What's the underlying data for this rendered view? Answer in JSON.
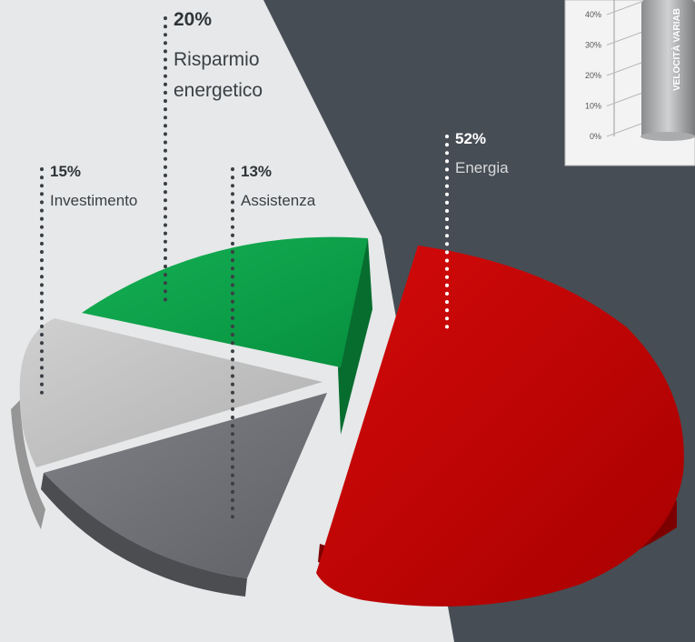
{
  "colors": {
    "background_left": "#e6e8e9",
    "background_right": "#464d54",
    "energia": "#c40000",
    "risparmio": "#0aa048",
    "investimento": "#c2c2c2",
    "assistenza": "#6e6f73"
  },
  "chart_data": [
    {
      "type": "pie",
      "style": "3d-exploded",
      "slices": [
        {
          "label": "Energia",
          "value": 52,
          "value_label": "52%",
          "color": "#c40000"
        },
        {
          "label": "Risparmio energetico",
          "value": 20,
          "value_label": "20%",
          "color": "#0aa048"
        },
        {
          "label": "Investimento",
          "value": 15,
          "value_label": "15%",
          "color": "#c2c2c2"
        },
        {
          "label": "Assistenza",
          "value": 13,
          "value_label": "13%",
          "color": "#6e6f73"
        }
      ]
    },
    {
      "type": "bar",
      "partial": true,
      "yticks": [
        "0%",
        "10%",
        "20%",
        "30%",
        "40%"
      ],
      "ylim": [
        0,
        40
      ],
      "bar_label": "VELOCITÀ VARIAB"
    }
  ],
  "labels": {
    "risparmio_pct": "20%",
    "risparmio_line1": "Risparmio",
    "risparmio_line2": "energetico",
    "investimento_pct": "15%",
    "investimento_name": "Investimento",
    "assistenza_pct": "13%",
    "assistenza_name": "Assistenza",
    "energia_pct": "52%",
    "energia_name": "Energia"
  }
}
